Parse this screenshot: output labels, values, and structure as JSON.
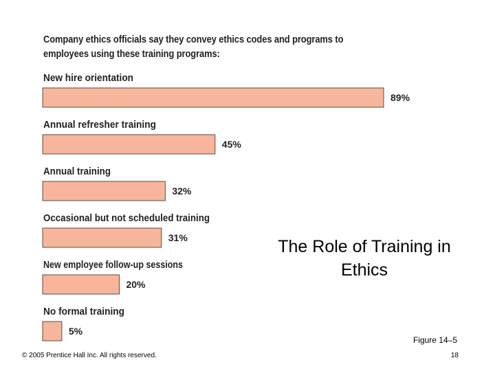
{
  "slide": {
    "title": "The Role of Training in Ethics",
    "figure_label": "Figure 14–5",
    "copyright": "© 2005 Prentice Hall Inc. All rights reserved.",
    "page_number": "18"
  },
  "chart_data": {
    "type": "bar",
    "orientation": "horizontal",
    "title": "Company ethics officials say they convey ethics codes and programs to employees using these training programs:",
    "categories": [
      "New hire orientation",
      "Annual refresher training",
      "Annual training",
      "Occasional but not scheduled training",
      "New employee follow-up sessions",
      "No formal training"
    ],
    "values": [
      89,
      45,
      32,
      31,
      20,
      5
    ],
    "value_labels": [
      "89%",
      "45%",
      "32%",
      "31%",
      "20%",
      "5%"
    ],
    "unit": "%",
    "xlim": [
      0,
      89
    ],
    "grid": false,
    "legend": "none",
    "colors": {
      "bar_fill": "#f7b69b",
      "bar_stroke": "#5a4a44",
      "text": "#231f20"
    }
  }
}
